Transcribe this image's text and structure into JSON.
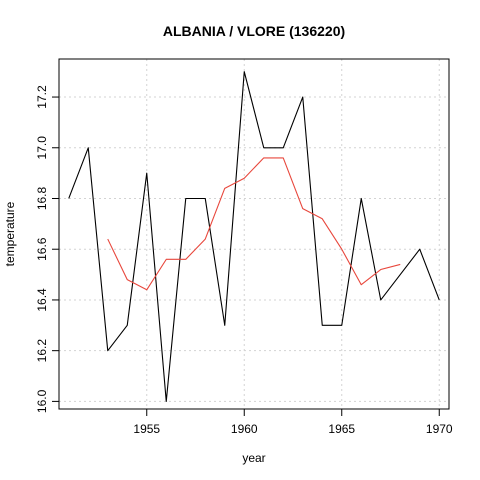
{
  "chart_data": {
    "type": "line",
    "title": "ALBANIA / VLORE (136220)",
    "xlabel": "year",
    "ylabel": "temperature",
    "xlim": [
      1950.5,
      1970.5
    ],
    "ylim": [
      15.97,
      17.35
    ],
    "xticks": [
      1955,
      1960,
      1965,
      1970
    ],
    "yticks": [
      16.0,
      16.2,
      16.4,
      16.6,
      16.8,
      17.0,
      17.2
    ],
    "ytick_labels": [
      "16.0",
      "16.2",
      "16.4",
      "16.6",
      "16.8",
      "17.0",
      "17.2"
    ],
    "grid": true,
    "series": [
      {
        "color": "#000000",
        "x": [
          1951,
          1952,
          1953,
          1954,
          1955,
          1956,
          1957,
          1958,
          1959,
          1960,
          1961,
          1962,
          1963,
          1964,
          1965,
          1966,
          1967,
          1968,
          1969,
          1970
        ],
        "y": [
          16.8,
          17.0,
          16.2,
          16.3,
          16.9,
          16.0,
          16.8,
          16.8,
          16.3,
          17.3,
          17.0,
          17.0,
          17.2,
          16.3,
          16.3,
          16.8,
          16.4,
          16.5,
          16.6,
          16.4
        ]
      },
      {
        "color": "#e8473c",
        "x": [
          1953,
          1954,
          1955,
          1956,
          1957,
          1958,
          1959,
          1960,
          1961,
          1962,
          1963,
          1964,
          1965,
          1966,
          1967,
          1968
        ],
        "y": [
          16.64,
          16.48,
          16.44,
          16.56,
          16.56,
          16.64,
          16.84,
          16.88,
          16.96,
          16.96,
          16.76,
          16.72,
          16.6,
          16.46,
          16.52,
          16.54
        ]
      }
    ]
  }
}
